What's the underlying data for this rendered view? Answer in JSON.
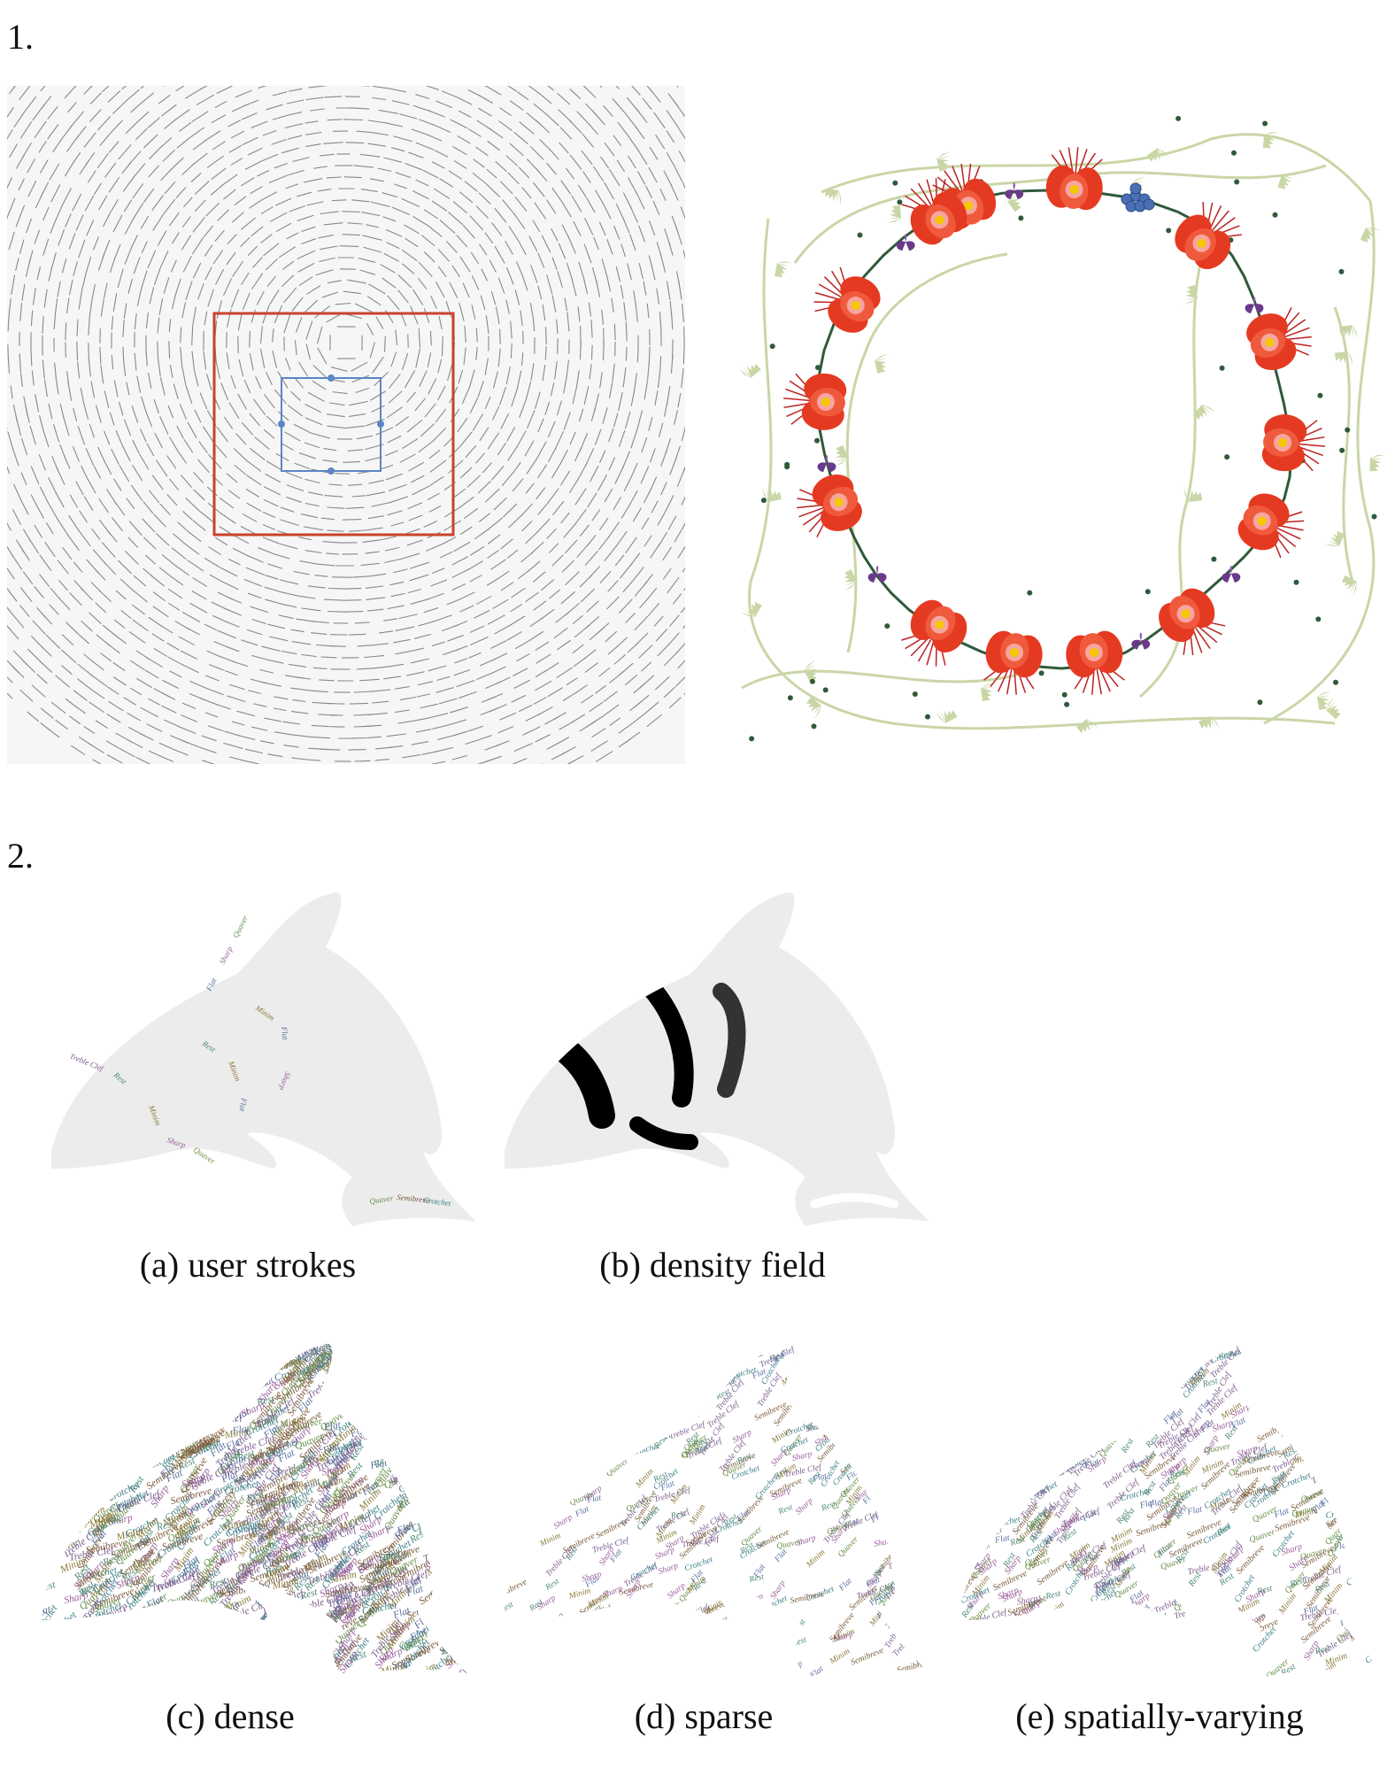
{
  "section1": {
    "number": "1."
  },
  "section2": {
    "number": "2."
  },
  "figure2": {
    "captions": {
      "a": "(a) user strokes",
      "b": "(b) density field",
      "c": "(c) dense",
      "d": "(d) sparse",
      "e": "(e) spatially-varying"
    },
    "words": [
      "Treble Clef",
      "Rest",
      "Minim",
      "Flat",
      "Sharp",
      "Quaver",
      "Semibreve",
      "Crotchet"
    ],
    "word_colors": [
      "#7a5c8c",
      "#4f8a7a",
      "#8a7a3a",
      "#5a6fa0",
      "#9a5e9a",
      "#6a8f4a",
      "#7a5a3a",
      "#3e7f8a"
    ]
  },
  "colors": {
    "stroke_gray": "#888888",
    "red_frame": "#c8432b",
    "blue_frame": "#5b86c4",
    "flower_red": "#e53a22",
    "leaf_green": "#c9d6a6",
    "vine_dark": "#2f5a3a",
    "violet": "#6a3a8a",
    "dolphin_fill": "#ececec"
  }
}
